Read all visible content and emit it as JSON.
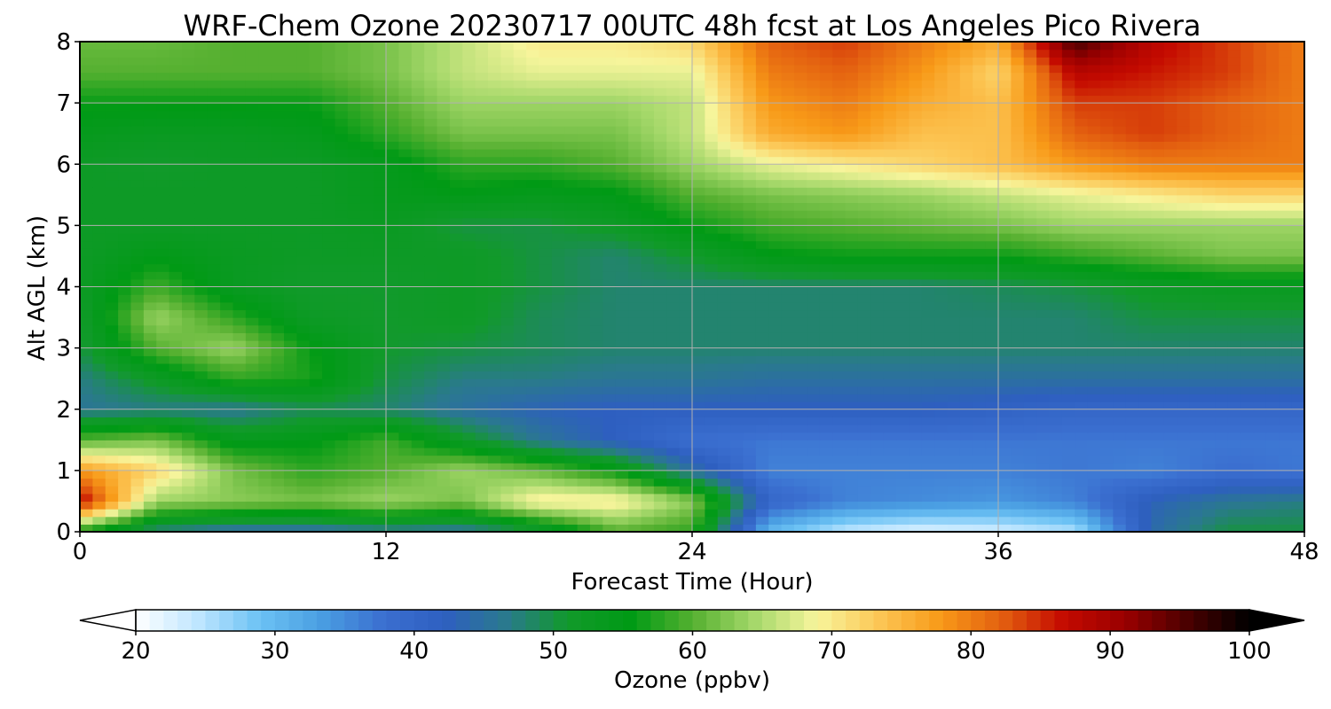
{
  "chart_data": {
    "type": "heatmap",
    "title": "WRF-Chem Ozone  20230717 00UTC 48h fcst at Los Angeles Pico Rivera",
    "xlabel": "Forecast Time (Hour)",
    "ylabel": "Alt AGL (km)",
    "xlim": [
      0,
      48
    ],
    "ylim": [
      0,
      8
    ],
    "xticks": [
      "0",
      "12",
      "24",
      "36",
      "48"
    ],
    "yticks": [
      "0",
      "1",
      "2",
      "3",
      "4",
      "5",
      "6",
      "7",
      "8"
    ],
    "grid": true,
    "x": [
      0,
      3,
      6,
      9,
      12,
      15,
      18,
      21,
      24,
      27,
      30,
      33,
      36,
      39,
      42,
      45,
      48
    ],
    "y": [
      0,
      0.5,
      1,
      1.5,
      2,
      2.5,
      3,
      3.5,
      4,
      4.5,
      5,
      5.5,
      6,
      6.5,
      7,
      7.5,
      8
    ],
    "z": [
      [
        56,
        47,
        44,
        44,
        46,
        45,
        50,
        60,
        58,
        30,
        24,
        22,
        23,
        25,
        44,
        50,
        50
      ],
      [
        88,
        64,
        63,
        62,
        64,
        62,
        70,
        70,
        63,
        40,
        36,
        35,
        34,
        36,
        43,
        46,
        47
      ],
      [
        78,
        72,
        62,
        58,
        60,
        64,
        61,
        56,
        45,
        36,
        36,
        36,
        36,
        37,
        36,
        38,
        37
      ],
      [
        60,
        62,
        54,
        55,
        59,
        52,
        46,
        42,
        38,
        37,
        37,
        37,
        37,
        37,
        37,
        37,
        37
      ],
      [
        46,
        47,
        46,
        49,
        48,
        45,
        43,
        42,
        42,
        42,
        42,
        42,
        41,
        40,
        40,
        40,
        40
      ],
      [
        47,
        52,
        58,
        57,
        50,
        47,
        47,
        46,
        46,
        45,
        45,
        45,
        45,
        45,
        45,
        45,
        45
      ],
      [
        50,
        60,
        64,
        56,
        51,
        50,
        49,
        48,
        48,
        48,
        48,
        48,
        48,
        48,
        48,
        48,
        48
      ],
      [
        51,
        64,
        58,
        52,
        51,
        52,
        49,
        48,
        48,
        48,
        48,
        48,
        48,
        48,
        50,
        50,
        50
      ],
      [
        52,
        59,
        53,
        51,
        51,
        52,
        50,
        48,
        48,
        48,
        48,
        48,
        49,
        50,
        52,
        53,
        53
      ],
      [
        52,
        55,
        53,
        52,
        52,
        52,
        50,
        48,
        51,
        55,
        56,
        56,
        56,
        58,
        60,
        62,
        62
      ],
      [
        52,
        52,
        52,
        52,
        53,
        50,
        50,
        52,
        56,
        59,
        60,
        61,
        62,
        64,
        64,
        64,
        64
      ],
      [
        52,
        52,
        52,
        52,
        54,
        55,
        54,
        55,
        60,
        62,
        63,
        64,
        66,
        68,
        70,
        72,
        72
      ],
      [
        52,
        51,
        52,
        52,
        54,
        58,
        58,
        60,
        64,
        68,
        70,
        72,
        74,
        78,
        80,
        80,
        80
      ],
      [
        54,
        53,
        53,
        54,
        58,
        62,
        62,
        62,
        66,
        76,
        78,
        74,
        74,
        82,
        84,
        82,
        80
      ],
      [
        56,
        56,
        56,
        56,
        60,
        64,
        64,
        64,
        66,
        78,
        80,
        76,
        74,
        84,
        84,
        82,
        80
      ],
      [
        60,
        60,
        60,
        60,
        62,
        66,
        68,
        68,
        68,
        80,
        82,
        78,
        72,
        88,
        86,
        84,
        80
      ],
      [
        61,
        61,
        60,
        60,
        62,
        66,
        70,
        70,
        72,
        82,
        84,
        80,
        76,
        96,
        88,
        84,
        80
      ]
    ],
    "colorbar": {
      "label": "Ozone  (ppbv)",
      "min": 20,
      "max": 100,
      "ticks": [
        "20",
        "30",
        "40",
        "50",
        "60",
        "70",
        "80",
        "90",
        "100"
      ],
      "extend": "both",
      "colors": [
        "#ffffff",
        "#bfe6ff",
        "#6cc2f4",
        "#4a9ee2",
        "#3b6fd0",
        "#2e5fc0",
        "#2a7a8c",
        "#119a2a",
        "#009a15",
        "#55b030",
        "#a5d86a",
        "#f7f59c",
        "#fcc756",
        "#f89a18",
        "#e35f10",
        "#c40a00",
        "#990000",
        "#4a0000",
        "#000000"
      ]
    }
  }
}
